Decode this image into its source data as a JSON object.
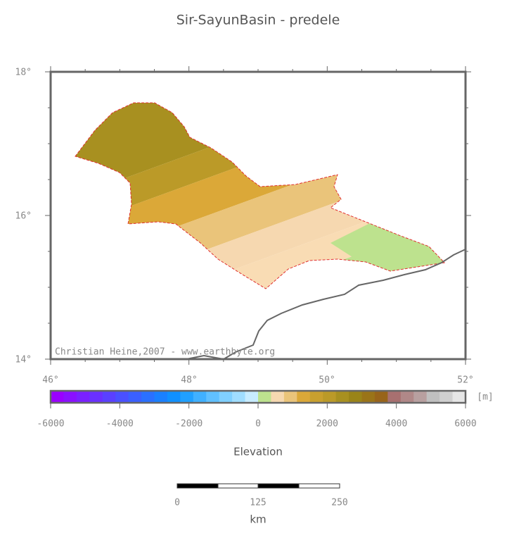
{
  "title": "Sir-SayunBasin - predele",
  "map": {
    "lat_ticks": [
      "18°",
      "16°",
      "14°"
    ],
    "lon_ticks": [
      "46°",
      "48°",
      "50°",
      "52°"
    ],
    "credit": "Christian Heine,2007 - www.earthbyte.org"
  },
  "colorbar": {
    "unit": "[m]",
    "ticks": [
      "-6000",
      "-4000",
      "-2000",
      "0",
      "2000",
      "4000",
      "6000"
    ],
    "label": "Elevation"
  },
  "scalebar": {
    "ticks": [
      "0",
      "125",
      "250"
    ],
    "label": "km"
  }
}
